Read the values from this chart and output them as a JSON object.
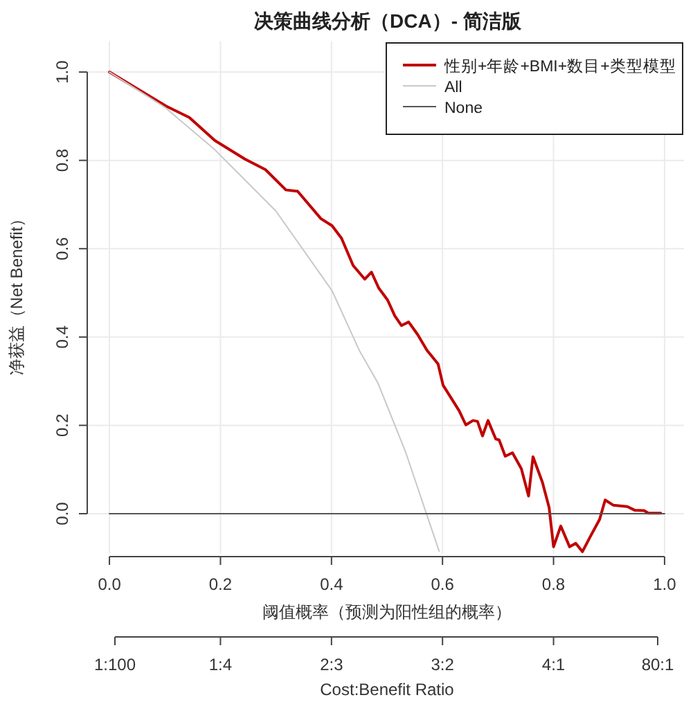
{
  "chart_data": {
    "type": "line",
    "title": "决策曲线分析（DCA）- 简洁版",
    "xlabel": "阈值概率（预测为阳性组的概率）",
    "ylabel": "净获益（Net Benefit）",
    "x2label": "Cost:Benefit Ratio",
    "xlim": [
      -0.04,
      1.04
    ],
    "ylim": [
      -0.09,
      1.07
    ],
    "xticks": [
      {
        "value": 0,
        "label": "0.0"
      },
      {
        "value": 0.2,
        "label": "0.2"
      },
      {
        "value": 0.4,
        "label": "0.4"
      },
      {
        "value": 0.6,
        "label": "0.6"
      },
      {
        "value": 0.8,
        "label": "0.8"
      },
      {
        "value": 1,
        "label": "1.0"
      }
    ],
    "yticks": [
      {
        "value": 0,
        "label": "0.0"
      },
      {
        "value": 0.2,
        "label": "0.2"
      },
      {
        "value": 0.4,
        "label": "0.4"
      },
      {
        "value": 0.6,
        "label": "0.6"
      },
      {
        "value": 0.8,
        "label": "0.8"
      },
      {
        "value": 1,
        "label": "1.0"
      }
    ],
    "annotations": [
      "1:100",
      "1:4",
      "2:3",
      "3:2",
      "4:1",
      "80:1"
    ],
    "grid": true,
    "legend": "top right",
    "marker": "none",
    "line_style": "solid",
    "series": [
      {
        "name": "性别+年龄+BMI+数目+类型模型",
        "color": "#c00000",
        "x": [
          0,
          0.102,
          0.144,
          0.19,
          0.244,
          0.281,
          0.318,
          0.339,
          0.381,
          0.401,
          0.418,
          0.439,
          0.46,
          0.472,
          0.485,
          0.501,
          0.514,
          0.526,
          0.539,
          0.555,
          0.572,
          0.592,
          0.601,
          0.622,
          0.63,
          0.642,
          0.655,
          0.663,
          0.672,
          0.682,
          0.696,
          0.702,
          0.713,
          0.726,
          0.742,
          0.755,
          0.763,
          0.78,
          0.792,
          0.8,
          0.813,
          0.829,
          0.84,
          0.852,
          0.867,
          0.883,
          0.893,
          0.908,
          0.933,
          0.946,
          0.963,
          0.971,
          0.993
        ],
        "values": [
          1.0,
          0.923,
          0.897,
          0.845,
          0.803,
          0.779,
          0.733,
          0.73,
          0.668,
          0.652,
          0.624,
          0.562,
          0.531,
          0.547,
          0.511,
          0.484,
          0.448,
          0.426,
          0.434,
          0.406,
          0.37,
          0.339,
          0.291,
          0.249,
          0.233,
          0.201,
          0.211,
          0.209,
          0.176,
          0.211,
          0.169,
          0.167,
          0.13,
          0.138,
          0.102,
          0.04,
          0.129,
          0.071,
          0.014,
          -0.075,
          -0.028,
          -0.075,
          -0.067,
          -0.086,
          -0.05,
          -0.013,
          0.031,
          0.019,
          0.016,
          0.008,
          0.007,
          0.001,
          0.001
        ]
      },
      {
        "name": "All",
        "color": "#c8c8c8",
        "x": [
          0,
          0.1,
          0.19,
          0.3,
          0.401,
          0.45,
          0.484,
          0.534,
          0.571,
          0.594
        ],
        "values": [
          1.0,
          0.92,
          0.824,
          0.685,
          0.505,
          0.37,
          0.295,
          0.138,
          0.0,
          -0.085
        ]
      },
      {
        "name": "None",
        "color": "#555555",
        "x": [
          0,
          1
        ],
        "values": [
          0,
          0
        ]
      }
    ]
  }
}
